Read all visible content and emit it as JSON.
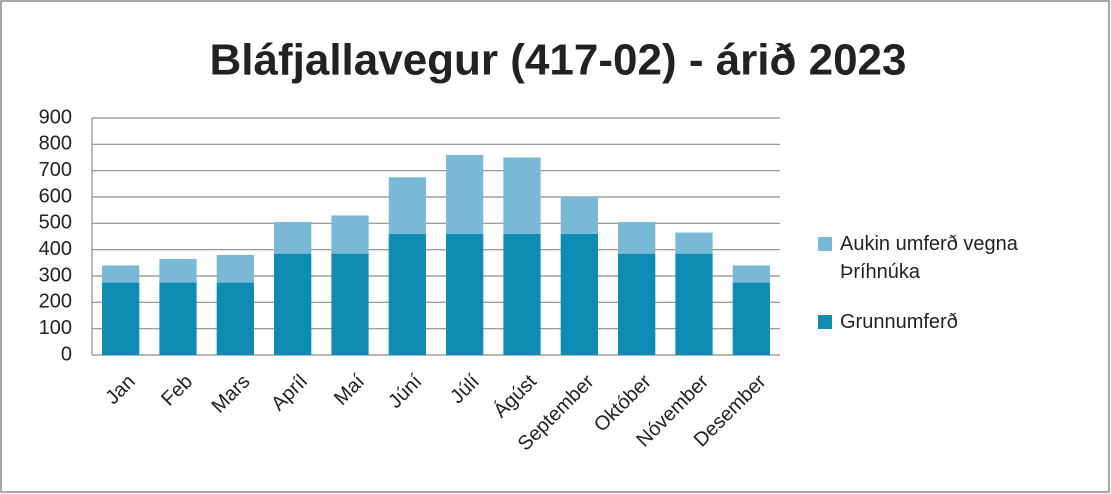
{
  "chart_data": {
    "type": "bar",
    "stacked": true,
    "title": "Bláfjallavegur (417-02) - árið 2023",
    "categories": [
      "Jan",
      "Feb",
      "Mars",
      "Apríl",
      "Maí",
      "Júní",
      "Júlí",
      "Ágúst",
      "September",
      "Október",
      "Nóvember",
      "Desember"
    ],
    "series": [
      {
        "name": "Grunnumferð",
        "color": "#0e8cb3",
        "values": [
          275,
          275,
          275,
          385,
          385,
          460,
          460,
          460,
          460,
          385,
          385,
          275
        ]
      },
      {
        "name": "Aukin umferð vegna Þríhnúka",
        "color": "#7ab9d6",
        "values": [
          65,
          90,
          105,
          120,
          145,
          215,
          300,
          290,
          140,
          120,
          80,
          65
        ]
      }
    ],
    "ylim": [
      0,
      900
    ],
    "yticks": [
      0,
      100,
      200,
      300,
      400,
      500,
      600,
      700,
      800,
      900
    ],
    "grid": true,
    "legend": "right"
  }
}
